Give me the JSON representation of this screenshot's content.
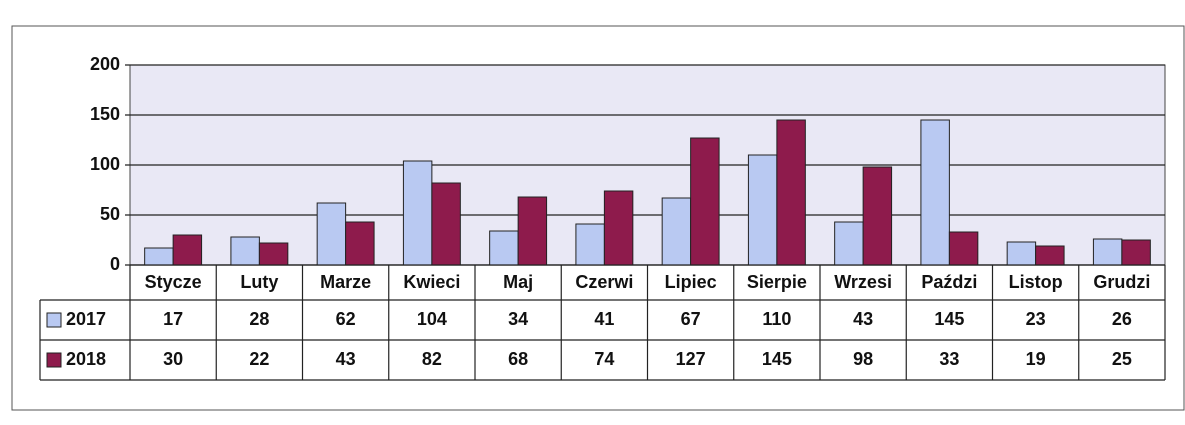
{
  "chart_data": {
    "type": "bar",
    "categories": [
      "Stycze",
      "Luty",
      "Marze",
      "Kwieci",
      "Maj",
      "Czerwi",
      "Lipiec",
      "Sierpie",
      "Wrzesi",
      "Paździ",
      "Listop",
      "Grudzi"
    ],
    "series": [
      {
        "name": "2017",
        "color": "#b9c9f2",
        "values": [
          17,
          28,
          62,
          104,
          34,
          41,
          67,
          110,
          43,
          145,
          23,
          26
        ]
      },
      {
        "name": "2018",
        "color": "#8e1b4c",
        "values": [
          30,
          22,
          43,
          82,
          68,
          74,
          127,
          145,
          98,
          33,
          19,
          25
        ]
      }
    ],
    "ylim": [
      0,
      200
    ],
    "yticks": [
      0,
      50,
      100,
      150,
      200
    ],
    "grid": true
  }
}
